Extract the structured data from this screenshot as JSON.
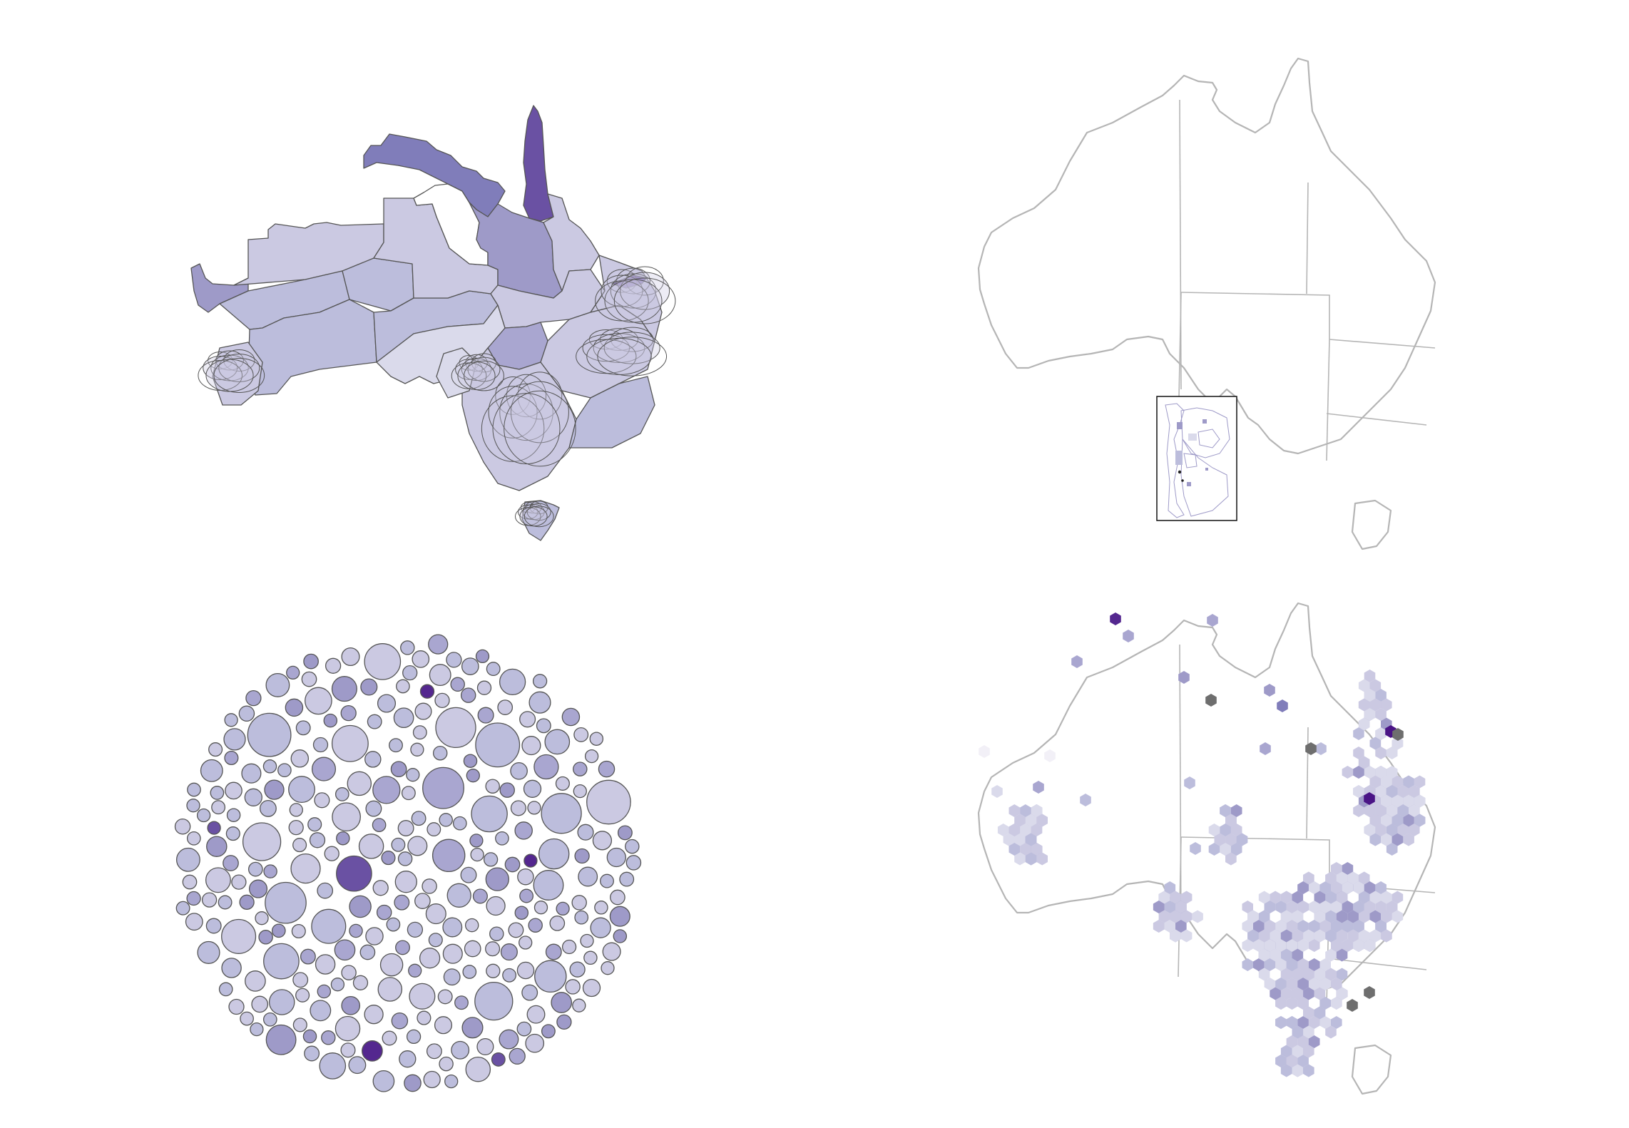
{
  "figure": {
    "panels": [
      {
        "id": "cartogram",
        "kind": "contiguous-cartogram"
      },
      {
        "id": "choropleth",
        "kind": "choropleth-with-inset"
      },
      {
        "id": "dorling",
        "kind": "non-contiguous-dorling"
      },
      {
        "id": "hexmap",
        "kind": "hexagon-tile-map"
      }
    ]
  },
  "colors": {
    "background": "#ffffff",
    "outline": "#b5b5b5",
    "region_edge": "#555555",
    "missing": "#6e6e6e",
    "purples": [
      "#f2f0f7",
      "#dadaeb",
      "#cbc9e2",
      "#bcbddc",
      "#a9a6d0",
      "#9e9ac8",
      "#807dba",
      "#6a51a3",
      "#54278f",
      "#4a1486"
    ]
  }
}
